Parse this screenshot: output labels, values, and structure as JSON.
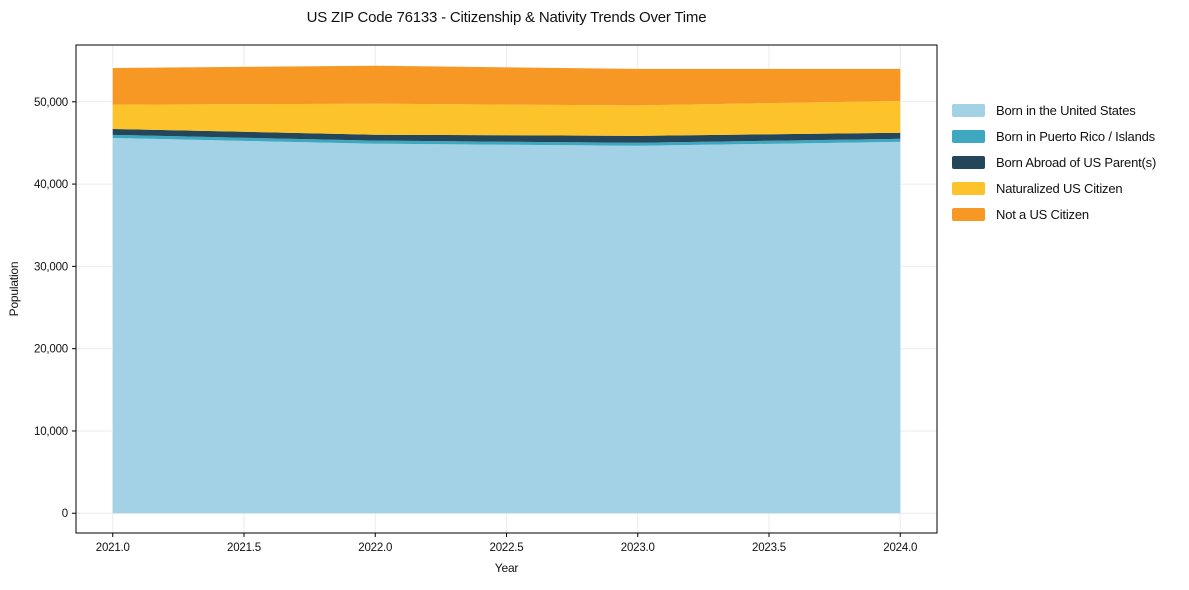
{
  "chart_data": {
    "type": "area",
    "stacked": true,
    "title": "US ZIP Code 76133 - Citizenship & Nativity Trends Over Time",
    "xlabel": "Year",
    "ylabel": "Population",
    "x": [
      2021,
      2022,
      2023,
      2024
    ],
    "series": [
      {
        "name": "Born in the United States",
        "color": "#a3d2e6",
        "values": [
          45600,
          44900,
          44650,
          45130
        ]
      },
      {
        "name": "Born in Puerto Rico / Islands",
        "color": "#3ea8c1",
        "values": [
          380,
          380,
          370,
          370
        ]
      },
      {
        "name": "Born Abroad of US Parent(s)",
        "color": "#24465a",
        "values": [
          720,
          720,
          840,
          730
        ]
      },
      {
        "name": "Naturalized US Citizen",
        "color": "#fdc32b",
        "values": [
          2950,
          3760,
          3700,
          3870
        ]
      },
      {
        "name": "Not a US Citizen",
        "color": "#f79825",
        "values": [
          4450,
          4620,
          4440,
          3900
        ]
      }
    ],
    "totals": [
      54100,
      54380,
      54000,
      54000
    ],
    "x_ticks": [
      2021.0,
      2021.5,
      2022.0,
      2022.5,
      2023.0,
      2023.5,
      2024.0
    ],
    "x_tick_labels": [
      "2021.0",
      "2021.5",
      "2022.0",
      "2022.5",
      "2023.0",
      "2023.5",
      "2024.0"
    ],
    "y_ticks": [
      0,
      10000,
      20000,
      30000,
      40000,
      50000
    ],
    "y_tick_labels": [
      "0",
      "10,000",
      "20,000",
      "30,000",
      "40,000",
      "50,000"
    ],
    "xlim": [
      2020.86,
      2024.14
    ],
    "ylim": [
      -2400,
      56900
    ],
    "grid": true,
    "grid_color": "#ebebeb",
    "spine_color": "#000000",
    "legend_position": "upper right, outside plot"
  }
}
